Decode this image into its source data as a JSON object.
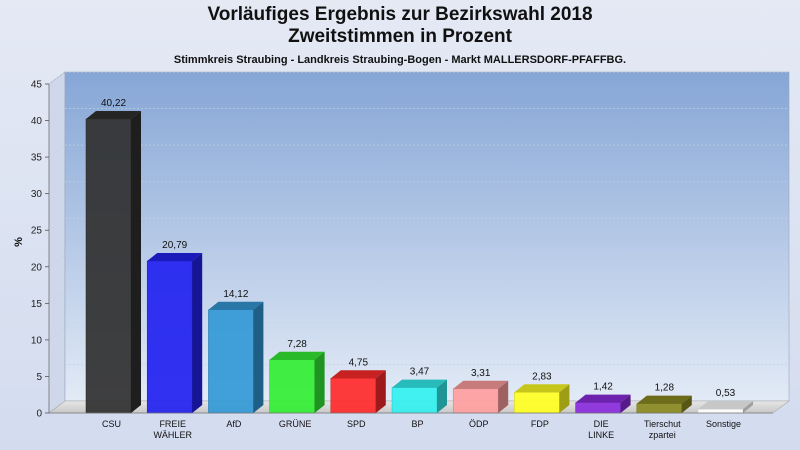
{
  "header": {
    "title_line1": "Vorläufiges Ergebnis zur Bezirkswahl 2018",
    "title_line2": "Zweitstimmen in Prozent",
    "subtitle": "Stimmkreis Straubing - Landkreis Straubing-Bogen - Markt MALLERSDORF-PFAFFBG."
  },
  "chart_data": {
    "type": "bar",
    "title": "Vorläufiges Ergebnis zur Bezirkswahl 2018 / Zweitstimmen in Prozent",
    "ylabel": "%",
    "xlabel": "",
    "ylim": [
      0,
      45
    ],
    "yticks": [
      0,
      5,
      10,
      15,
      20,
      25,
      30,
      35,
      40,
      45
    ],
    "grid": true,
    "categories": [
      "CSU",
      "FREIE WÄHLER",
      "AfD",
      "GRÜNE",
      "SPD",
      "BP",
      "ÖDP",
      "FDP",
      "DIE LINKE",
      "Tierschutzpartei",
      "Sonstige"
    ],
    "category_lines": [
      [
        "CSU"
      ],
      [
        "FREIE",
        "WÄHLER"
      ],
      [
        "AfD"
      ],
      [
        "GRÜNE"
      ],
      [
        "SPD"
      ],
      [
        "BP"
      ],
      [
        "ÖDP"
      ],
      [
        "FDP"
      ],
      [
        "DIE",
        "LINKE"
      ],
      [
        "Tierschut",
        "zpartei"
      ],
      [
        "Sonstige"
      ]
    ],
    "values": [
      40.22,
      20.79,
      14.12,
      7.28,
      4.75,
      3.47,
      3.31,
      2.83,
      1.42,
      1.28,
      0.53
    ],
    "value_labels": [
      "40,22",
      "20,79",
      "14,12",
      "7,28",
      "4,75",
      "3,47",
      "3,31",
      "2,83",
      "1,42",
      "1,28",
      "0,53"
    ],
    "colors": [
      "#303030",
      "#2222f0",
      "#3399d6",
      "#33ee33",
      "#ff2a2a",
      "#33f0f0",
      "#ff9e9e",
      "#ffff22",
      "#8a2bdc",
      "#8a8a22",
      "#ffffff"
    ]
  }
}
